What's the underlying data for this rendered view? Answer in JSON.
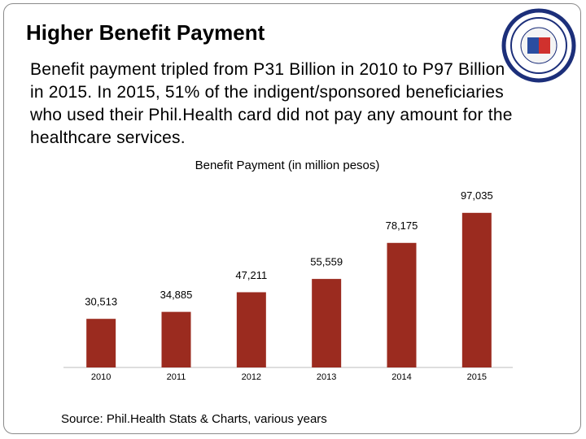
{
  "header": {
    "title": "Higher Benefit Payment"
  },
  "body": {
    "text": "Benefit payment tripled from P31 Billion in 2010 to P97 Billion in 2015. In 2015, 51% of the indigent/sponsored beneficiaries who used their Phil.Health card did not pay any amount for the healthcare services."
  },
  "source": "Source: Phil.Health Stats & Charts, various years",
  "chart_data": {
    "type": "bar",
    "title": "Benefit Payment (in million pesos)",
    "categories": [
      "2010",
      "2011",
      "2012",
      "2013",
      "2014",
      "2015"
    ],
    "values": [
      30513,
      34885,
      47211,
      55559,
      78175,
      97035
    ],
    "value_labels": [
      "30,513",
      "34,885",
      "47,211",
      "55,559",
      "78,175",
      "97,035"
    ],
    "color": "#9b2b1f",
    "ylim": [
      0,
      100000
    ]
  }
}
